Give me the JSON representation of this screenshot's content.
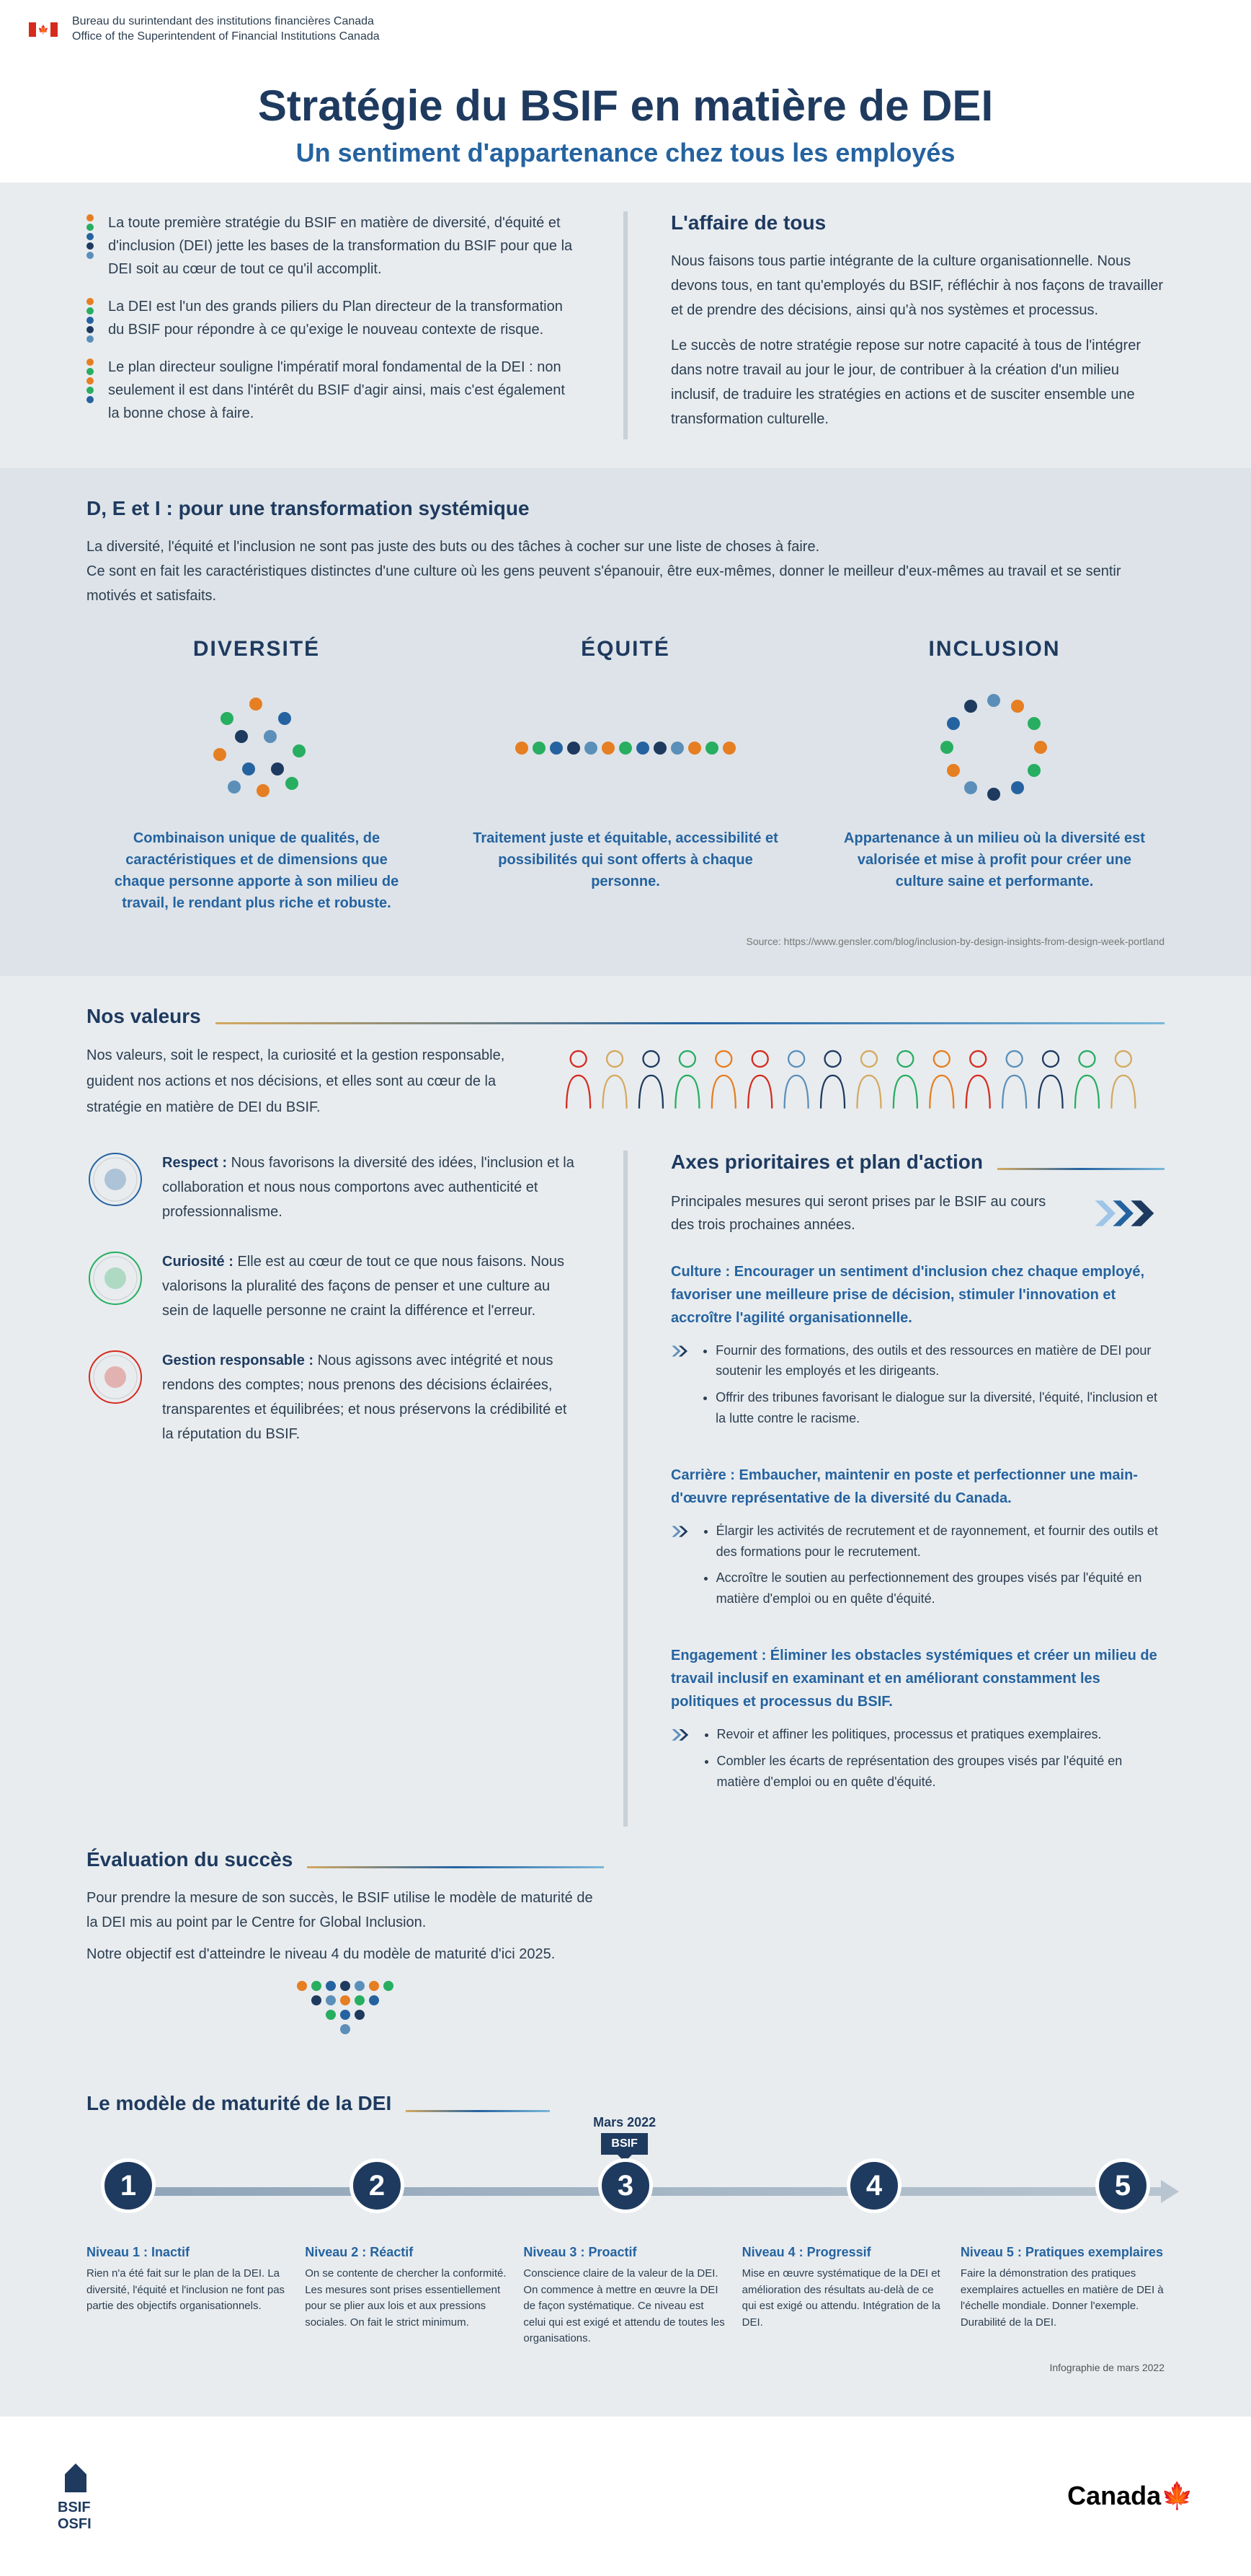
{
  "header": {
    "org_fr": "Bureau du surintendant des institutions financières Canada",
    "org_en": "Office of the Superintendent of Financial Institutions Canada"
  },
  "title": "Stratégie du BSIF en matière de DEI",
  "subtitle": "Un sentiment d'appartenance chez tous les employés",
  "colors": {
    "navy": "#1e3a5f",
    "blue": "#2563a0",
    "light_blue": "#5b8fb9",
    "gray_bg": "#e8ecef",
    "orange": "#e67e22",
    "green": "#27ae60",
    "teal": "#16a085",
    "yellow": "#d4a95f",
    "red": "#d52b1e"
  },
  "dot_colors": [
    "#e67e22",
    "#27ae60",
    "#2563a0",
    "#1e3a5f",
    "#5b8fb9",
    "#e67e22",
    "#27ae60",
    "#2563a0",
    "#1e3a5f",
    "#5b8fb9",
    "#e67e22",
    "#27ae60"
  ],
  "intro_bullets": [
    "La toute première stratégie du BSIF en matière de diversité, d'équité et d'inclusion (DEI) jette les bases de la transformation du BSIF pour que la DEI soit au cœur de tout ce qu'il accomplit.",
    "La DEI est l'un des grands piliers du Plan directeur de la transformation du BSIF pour répondre à ce qu'exige le nouveau contexte de risque.",
    "Le plan directeur souligne l'impératif moral fondamental de la DEI : non seulement il est dans  l'intérêt du BSIF d'agir ainsi, mais c'est également la bonne chose à faire."
  ],
  "affaire": {
    "title": "L'affaire de tous",
    "p1": "Nous faisons tous partie intégrante de la culture organisation­nelle. Nous devons tous, en tant qu'employés du BSIF, réfléchir à nos façons de travailler et de prendre des décisions, ainsi qu'à nos systèmes et processus.",
    "p2": "Le succès de notre stratégie repose sur notre capacité à tous de l'intégrer dans notre travail au jour le jour, de contribuer à la création d'un milieu inclusif, de traduire les stratégies en actions et de susciter ensemble une transformation culturelle."
  },
  "systemic": {
    "title": "D, E et I : pour une transformation systémique",
    "p1": "La diversité, l'équité et l'inclusion ne sont pas juste des buts ou des tâches à cocher sur une liste de choses à faire.",
    "p2": "Ce sont en fait les caractéristiques distinctes d'une culture où les gens peuvent s'épanouir, être eux-mêmes, donner le meilleur d'eux-mêmes au travail et se sentir motivés et satisfaits."
  },
  "dei": [
    {
      "title": "DIVERSITÉ",
      "desc": "Combinaison unique de qualités, de caractéristiques et de dimensions que chaque personne apporte à son milieu de travail, le rendant plus riche et robuste."
    },
    {
      "title": "ÉQUITÉ",
      "desc": "Traitement juste et équitable, accessibilité et possibilités qui sont offerts à chaque personne."
    },
    {
      "title": "INCLUSION",
      "desc": "Appartenance à un milieu où la diversité est valorisée et mise à profit pour créer une culture saine et performante."
    }
  ],
  "source": "Source: https://www.gensler.com/blog/inclusion-by-design-insights-from-design-week-portland",
  "values": {
    "title": "Nos valeurs",
    "intro": "Nos valeurs, soit le respect, la curiosité et la gestion responsable, guident nos actions et nos décisions, et elles sont au cœur de la stratégie en matière de DEI du BSIF.",
    "items": [
      {
        "label": "Respect :",
        "text": " Nous favorisons la diversité des idées, l'inclusion et la collaboration et nous nous comportons avec authenticité et professionnalisme."
      },
      {
        "label": "Curiosité :",
        "text": "  Elle est au cœur de tout ce que nous faisons. Nous valorisons la pluralité des façons de penser et une culture au sein de laquelle personne ne craint la différence et l'erreur."
      },
      {
        "label": "Gestion responsable :",
        "text": "  Nous agissons avec intégrité et nous rendons des comptes; nous prenons des décisions éclairées, transparentes et équilibrées; et nous préservons la crédibilité et la réputation du BSIF."
      }
    ]
  },
  "success": {
    "title": "Évaluation du succès",
    "p1": "Pour prendre la mesure de son succès, le BSIF utilise le modèle de maturité de la DEI mis au point par le Centre for Global Inclusion.",
    "p2": "Notre objectif est d'atteindre le niveau 4 du modèle de maturité d'ici 2025."
  },
  "priorities": {
    "title": "Axes prioritaires et plan d'action",
    "intro": "Principales mesures qui seront prises par le BSIF au cours des trois prochaines années.",
    "blocks": [
      {
        "title": "Culture : Encourager un sentiment d'inclusion chez chaque employé, favoriser une meilleure prise de décision, stimuler l'innovation et accroître l'agilité organisationnelle.",
        "bullets": [
          "Fournir des formations, des outils et des ressources en matière de DEI pour soutenir les employés et les dirigeants.",
          "Offrir des tribunes favorisant le dialogue sur la diversité, l'équité, l'inclusion et la lutte contre le racisme."
        ]
      },
      {
        "title": "Carrière : Embaucher, maintenir en poste et perfectionner une main-d'œuvre représentative de la diversité du Canada.",
        "bullets": [
          "Élargir les activités de recrutement et de rayonnement, et fournir des outils et des formations pour le recrutement.",
          "Accroître le soutien au perfectionnement des groupes visés par l'équité en matière d'emploi ou en quête d'équité."
        ]
      },
      {
        "title": "Engagement : Éliminer les obstacles systémiques et créer un milieu de travail inclusif en examinant et en améliorant constamment les politiques et processus du BSIF.",
        "bullets": [
          "Revoir et affiner les politiques, processus et pratiques exemplaires.",
          "Combler les écarts de représentation des groupes visés par l'équité en matière d'emploi ou en quête d'équité."
        ]
      }
    ]
  },
  "maturity": {
    "title": "Le modèle de maturité de la DEI",
    "marker_date": "Mars 2022",
    "marker_label": "BSIF",
    "levels": [
      {
        "n": "1",
        "title": "Niveau 1 : Inactif",
        "desc": "Rien n'a été fait sur le plan de la DEI. La diversité, l'équité et l'inclusion ne font pas partie des objectifs organisationnels."
      },
      {
        "n": "2",
        "title": "Niveau 2 : Réactif",
        "desc": "On se contente de chercher la conformité. Les mesures sont prises essentiellement pour se plier aux lois et aux pressions sociales. On fait le strict minimum."
      },
      {
        "n": "3",
        "title": "Niveau 3 : Proactif",
        "desc": "Conscience claire de la valeur de la DEI. On commence à mettre en œuvre la DEI de façon systématique. Ce niveau est celui qui est exigé et attendu de toutes les organisations."
      },
      {
        "n": "4",
        "title": "Niveau 4 : Progressif",
        "desc": "Mise en œuvre systématique de la DEI et amélioration des résultats au-delà de ce qui est exigé ou attendu. Intégration de la DEI."
      },
      {
        "n": "5",
        "title": "Niveau 5 : Pratiques exemplaires",
        "desc": "Faire la démonstration des pratiques exemplaires actuelles en matière de DEI à l'échelle mondiale. Donner l'exemple. Durabilité de la DEI."
      }
    ],
    "footer_note": "Infographie de mars 2022"
  },
  "footer": {
    "logo": "BSIF\nOSFI",
    "canada": "Canada"
  }
}
